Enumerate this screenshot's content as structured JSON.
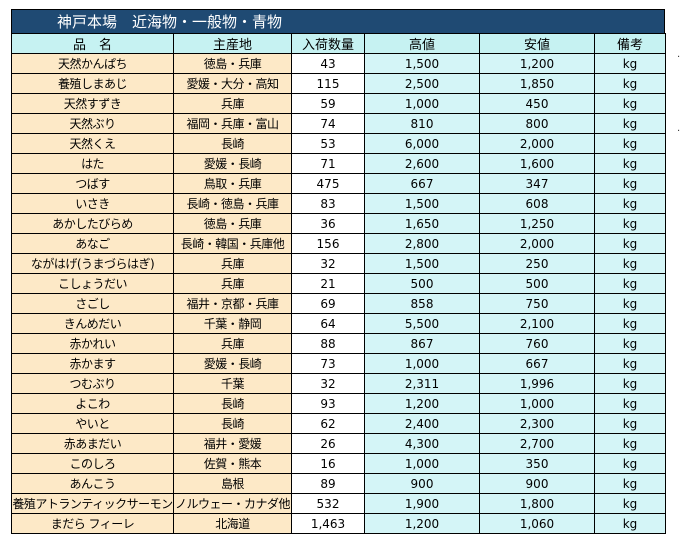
{
  "title": "神戸本場　近海物・一般物・青物",
  "headers": [
    "品　名",
    "主産地",
    "入荷数量",
    "高値",
    "安値",
    "備考"
  ],
  "rows": [
    [
      "天然かんぱち",
      "徳島・兵庫",
      "43",
      "1,500",
      "1,200",
      "kg"
    ],
    [
      "養殖しまあじ",
      "愛媛・大分・高知",
      "115",
      "2,500",
      "1,850",
      "kg"
    ],
    [
      "天然すずき",
      "兵庫",
      "59",
      "1,000",
      "450",
      "kg"
    ],
    [
      "天然ぶり",
      "福岡・兵庫・富山",
      "74",
      "810",
      "800",
      "kg"
    ],
    [
      "天然くえ",
      "長崎",
      "53",
      "6,000",
      "2,000",
      "kg"
    ],
    [
      "はた",
      "愛媛・長崎",
      "71",
      "2,600",
      "1,600",
      "kg"
    ],
    [
      "つばす",
      "鳥取・兵庫",
      "475",
      "667",
      "347",
      "kg"
    ],
    [
      "いさき",
      "長崎・徳島・兵庫",
      "83",
      "1,500",
      "608",
      "kg"
    ],
    [
      "あかしたびらめ",
      "徳島・兵庫",
      "36",
      "1,650",
      "1,250",
      "kg"
    ],
    [
      "あなご",
      "長崎・韓国・兵庫他",
      "156",
      "2,800",
      "2,000",
      "kg"
    ],
    [
      "ながはげ(うまづらはぎ)",
      "兵庫",
      "32",
      "1,500",
      "250",
      "kg"
    ],
    [
      "こしょうだい",
      "兵庫",
      "21",
      "500",
      "500",
      "kg"
    ],
    [
      "さごし",
      "福井・京都・兵庫",
      "69",
      "858",
      "750",
      "kg"
    ],
    [
      "きんめだい",
      "千葉・静岡",
      "64",
      "5,500",
      "2,100",
      "kg"
    ],
    [
      "赤かれい",
      "兵庫",
      "88",
      "867",
      "760",
      "kg"
    ],
    [
      "赤かます",
      "愛媛・長崎",
      "73",
      "1,000",
      "667",
      "kg"
    ],
    [
      "つむぶり",
      "千葉",
      "32",
      "2,311",
      "1,996",
      "kg"
    ],
    [
      "よこわ",
      "長崎",
      "93",
      "1,200",
      "1,000",
      "kg"
    ],
    [
      "やいと",
      "長崎",
      "62",
      "2,400",
      "2,300",
      "kg"
    ],
    [
      "赤あまだい",
      "福井・愛媛",
      "26",
      "4,300",
      "2,700",
      "kg"
    ],
    [
      "このしろ",
      "佐賀・熊本",
      "16",
      "1,000",
      "350",
      "kg"
    ],
    [
      "あんこう",
      "島根",
      "89",
      "900",
      "900",
      "kg"
    ],
    [
      "養殖アトランティックサーモン",
      "ノルウェー・カナダ他",
      "532",
      "1,900",
      "1,800",
      "kg"
    ],
    [
      "まだら フィーレ",
      "北海道",
      "1,463",
      "1,200",
      "1,060",
      "kg"
    ]
  ],
  "side_marks": [
    "·",
    "·"
  ]
}
